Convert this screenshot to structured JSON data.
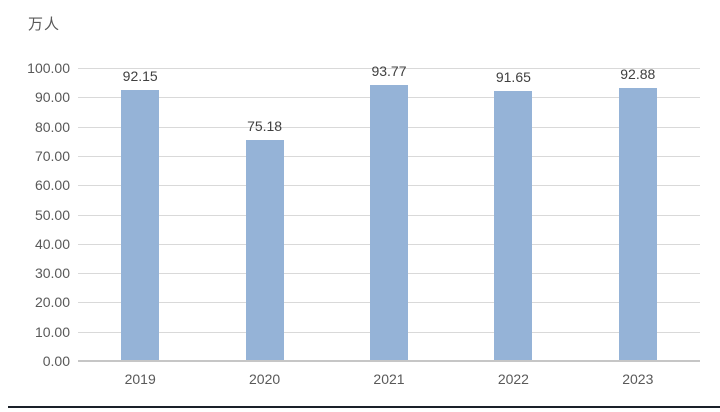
{
  "chart_data": {
    "type": "bar",
    "title": "",
    "unit_label": "万人",
    "categories": [
      "2019",
      "2020",
      "2021",
      "2022",
      "2023"
    ],
    "values": [
      92.15,
      75.18,
      93.77,
      91.65,
      92.88
    ],
    "value_labels": [
      "92.15",
      "75.18",
      "93.77",
      "91.65",
      "92.88"
    ],
    "ylim": [
      0,
      100
    ],
    "ytick_step": 10,
    "ytick_labels": [
      "0.00",
      "10.00",
      "20.00",
      "30.00",
      "40.00",
      "50.00",
      "60.00",
      "70.00",
      "80.00",
      "90.00",
      "100.00"
    ],
    "grid": "horizontal",
    "legend": "none",
    "colors": {
      "bar_fill": "#95B3D7",
      "gridline": "#D9D9D9",
      "axis_line": "#C6C6C6",
      "tick_text": "#595959",
      "value_label_text": "#404040",
      "bottom_rule": "#1A2029",
      "background": "#FFFFFF"
    }
  }
}
